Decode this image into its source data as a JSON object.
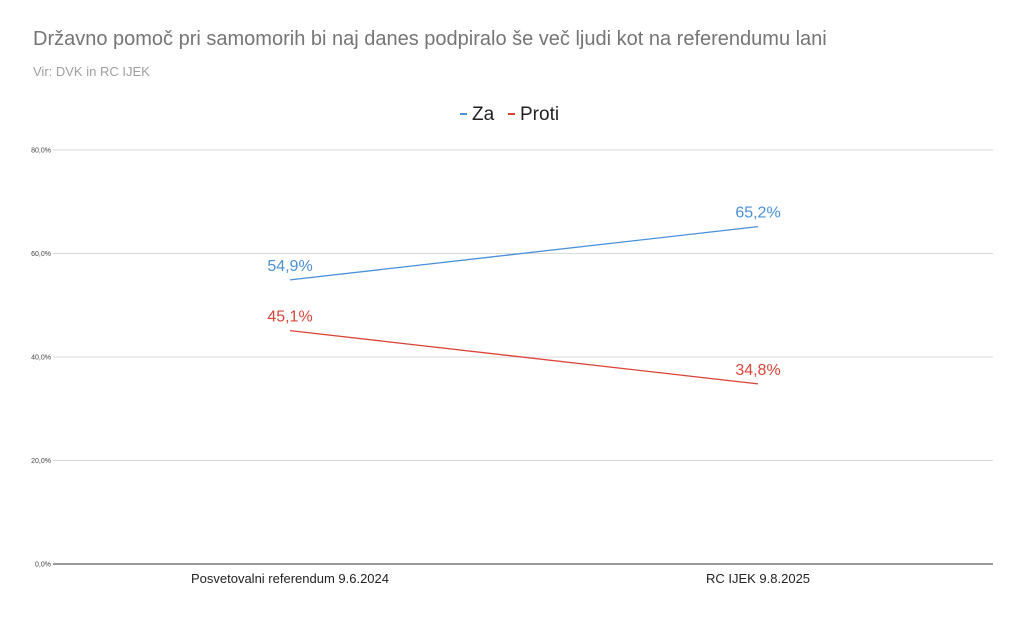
{
  "chart_data": {
    "type": "line",
    "title": "Državno pomoč pri samomorih bi naj danes podpiralo še več ljudi kot na referendumu lani",
    "subtitle": "Vir: DVK in RC IJEK",
    "categories": [
      "Posvetovalni referendum 9.6.2024",
      "RC IJEK 9.8.2025"
    ],
    "series": [
      {
        "name": "Za",
        "color": "#4a90d9",
        "values": [
          54.9,
          65.2
        ],
        "labels": [
          "54,9%",
          "65,2%"
        ]
      },
      {
        "name": "Proti",
        "color": "#db4437",
        "values": [
          45.1,
          34.8
        ],
        "labels": [
          "45,1%",
          "34,8%"
        ]
      }
    ],
    "yticks": [
      0,
      20,
      40,
      60,
      80
    ],
    "ytick_labels": [
      "0,0%",
      "20,0%",
      "40,0%",
      "60,0%",
      "80,0%"
    ],
    "ylim": [
      0,
      80
    ],
    "grid": true,
    "legend_position": "top-center",
    "xlabel": "",
    "ylabel": ""
  }
}
